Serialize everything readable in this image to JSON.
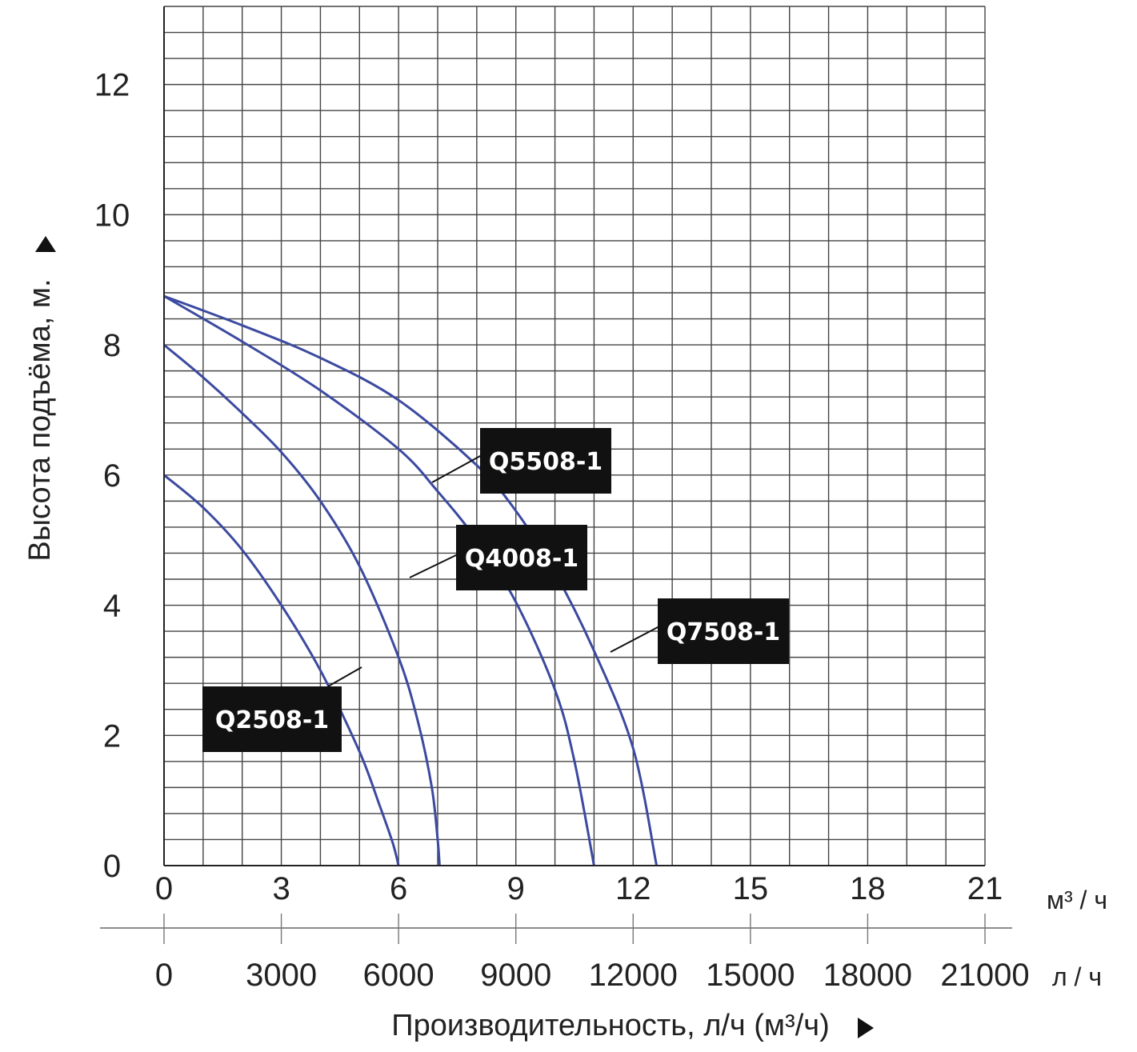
{
  "chart_data": {
    "type": "line",
    "xlabel": "Производительность, л/ч (м³/ч)",
    "ylabel": "Высота подъёма, м.",
    "xlim": [
      0,
      21
    ],
    "ylim": [
      0,
      13.2
    ],
    "grid": true,
    "x_ticks_m3h": [
      "0",
      "3",
      "6",
      "9",
      "12",
      "15",
      "18",
      "21"
    ],
    "x_ticks_lh": [
      "0",
      "3000",
      "6000",
      "9000",
      "12000",
      "15000",
      "18000",
      "21000"
    ],
    "y_ticks": [
      "0",
      "2",
      "4",
      "6",
      "8",
      "10",
      "12"
    ],
    "x_unit_m3h": "м³ / ч",
    "x_unit_lh": "л / ч",
    "line_color": "#3c4aa0",
    "series": [
      {
        "name": "Q2508-1",
        "x": [
          0,
          1,
          2,
          3,
          4,
          5,
          5.5,
          5.85,
          6.0
        ],
        "y": [
          6.0,
          5.5,
          4.85,
          4.0,
          3.0,
          1.75,
          0.95,
          0.35,
          0
        ]
      },
      {
        "name": "Q4008-1",
        "x": [
          0,
          1,
          2,
          3,
          4,
          5,
          6,
          6.5,
          6.85,
          7.0,
          7.05
        ],
        "y": [
          8.0,
          7.5,
          6.95,
          6.35,
          5.6,
          4.6,
          3.2,
          2.2,
          1.2,
          0.4,
          0
        ]
      },
      {
        "name": "Q5508-1",
        "x": [
          0,
          2,
          4,
          6,
          7,
          8,
          9,
          10,
          10.5,
          11.0
        ],
        "y": [
          8.75,
          8.05,
          7.3,
          6.4,
          5.75,
          5.0,
          4.05,
          2.7,
          1.6,
          0
        ]
      },
      {
        "name": "Q7508-1",
        "x": [
          0,
          2,
          4,
          6,
          8,
          9,
          10,
          11,
          12,
          12.6
        ],
        "y": [
          8.75,
          8.3,
          7.8,
          7.15,
          6.15,
          5.45,
          4.5,
          3.3,
          1.8,
          0
        ]
      }
    ],
    "labels": [
      {
        "name": "Q2508-1",
        "text": "Q2508-1"
      },
      {
        "name": "Q4008-1",
        "text": "Q4008-1"
      },
      {
        "name": "Q5508-1",
        "text": "Q5508-1"
      },
      {
        "name": "Q7508-1",
        "text": "Q7508-1"
      }
    ]
  }
}
